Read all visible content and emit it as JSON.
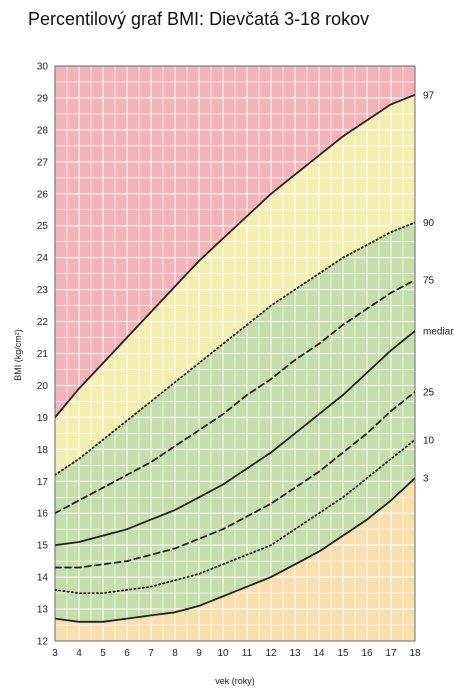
{
  "page": {
    "title": "Percentilový graf BMI: Dievčatá 3-18 rokov"
  },
  "chart_data": {
    "type": "line",
    "title": "Percentilový graf BMI: Dievčatá 3-18 rokov",
    "xlabel": "vek (roky)",
    "ylabel": "BMI (kg/cm²)",
    "xlim": [
      3,
      18
    ],
    "ylim": [
      12,
      30
    ],
    "x_ticks": [
      3,
      4,
      5,
      6,
      7,
      8,
      9,
      10,
      11,
      12,
      13,
      14,
      15,
      16,
      17,
      18
    ],
    "y_ticks": [
      12,
      13,
      14,
      15,
      16,
      17,
      18,
      19,
      20,
      21,
      22,
      23,
      24,
      25,
      26,
      27,
      28,
      29,
      30
    ],
    "grid": true,
    "x": [
      3,
      4,
      5,
      6,
      7,
      8,
      9,
      10,
      11,
      12,
      13,
      14,
      15,
      16,
      17,
      18
    ],
    "series": [
      {
        "name": "97",
        "style": "solid",
        "values": [
          19.0,
          19.9,
          20.7,
          21.5,
          22.3,
          23.1,
          23.9,
          24.6,
          25.3,
          26.0,
          26.6,
          27.2,
          27.8,
          28.3,
          28.8,
          29.1
        ]
      },
      {
        "name": "90",
        "style": "dotted",
        "values": [
          17.2,
          17.7,
          18.3,
          18.9,
          19.5,
          20.1,
          20.7,
          21.3,
          21.9,
          22.5,
          23.0,
          23.5,
          24.0,
          24.4,
          24.8,
          25.1
        ]
      },
      {
        "name": "75",
        "style": "dashed",
        "values": [
          16.0,
          16.4,
          16.8,
          17.2,
          17.6,
          18.1,
          18.6,
          19.1,
          19.7,
          20.2,
          20.8,
          21.3,
          21.9,
          22.4,
          22.9,
          23.3
        ]
      },
      {
        "name": "median",
        "style": "solid",
        "values": [
          15.0,
          15.1,
          15.3,
          15.5,
          15.8,
          16.1,
          16.5,
          16.9,
          17.4,
          17.9,
          18.5,
          19.1,
          19.7,
          20.4,
          21.1,
          21.7
        ]
      },
      {
        "name": "25",
        "style": "dashed",
        "values": [
          14.3,
          14.3,
          14.4,
          14.5,
          14.7,
          14.9,
          15.2,
          15.5,
          15.9,
          16.3,
          16.8,
          17.3,
          17.9,
          18.5,
          19.2,
          19.8
        ]
      },
      {
        "name": "10",
        "style": "dotted",
        "values": [
          13.6,
          13.5,
          13.5,
          13.6,
          13.7,
          13.9,
          14.1,
          14.4,
          14.7,
          15.0,
          15.5,
          16.0,
          16.5,
          17.1,
          17.7,
          18.3
        ]
      },
      {
        "name": "3",
        "style": "solid",
        "values": [
          12.7,
          12.6,
          12.6,
          12.7,
          12.8,
          12.9,
          13.1,
          13.4,
          13.7,
          14.0,
          14.4,
          14.8,
          15.3,
          15.8,
          16.4,
          17.1
        ]
      }
    ],
    "zones": [
      {
        "between": [
          "top",
          "97"
        ],
        "color": "#f2b4b9"
      },
      {
        "between": [
          "97",
          "90"
        ],
        "color": "#f4eeb1"
      },
      {
        "between": [
          "90",
          "3"
        ],
        "color": "#c6deac"
      },
      {
        "between": [
          "3",
          "bottom"
        ],
        "color": "#f8dfae"
      }
    ],
    "colors": {
      "line": "#222222",
      "grid": "#ffffff"
    }
  }
}
